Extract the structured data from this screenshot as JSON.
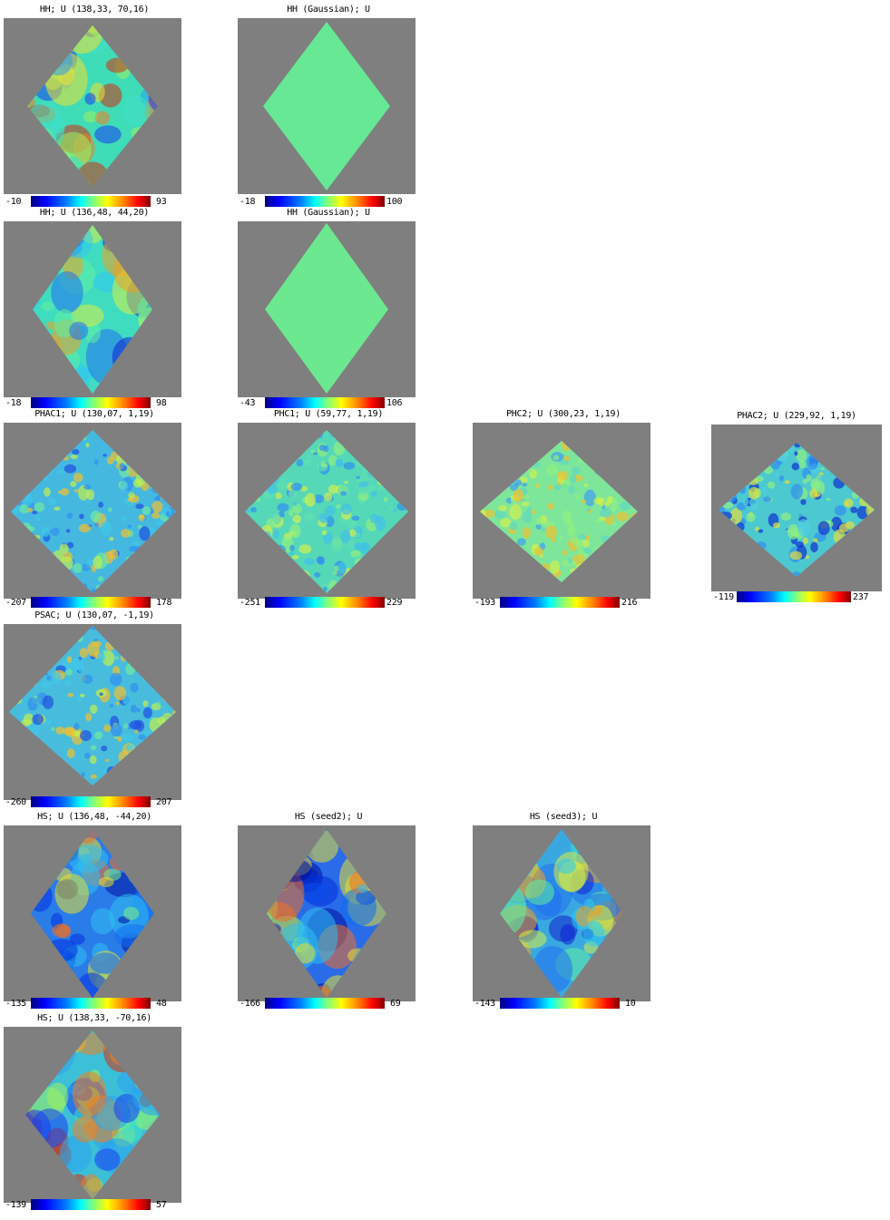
{
  "panels": [
    {
      "id": "p1",
      "title": "HH; U (138,33, 70,16)",
      "min": "-10",
      "max": "93",
      "map": "structured-warm"
    },
    {
      "id": "p2",
      "title": "HH (Gaussian); U",
      "min": "-18",
      "max": "100",
      "map": "uniform"
    },
    {
      "id": "p3",
      "title": "HH; U (136,48, 44,20)",
      "min": "-18",
      "max": "98",
      "map": "structured-mid"
    },
    {
      "id": "p4",
      "title": "HH (Gaussian); U",
      "min": "-43",
      "max": "106",
      "map": "uniform"
    },
    {
      "id": "p5",
      "title": "PHAC1; U (130,07, 1,19)",
      "min": "-207",
      "max": "178",
      "map": "noise-blue"
    },
    {
      "id": "p6",
      "title": "PHC1; U (59,77, 1,19)",
      "min": "-251",
      "max": "229",
      "map": "noise-green"
    },
    {
      "id": "p7",
      "title": "PHC2; U (300,23, 1,19)",
      "min": "-193",
      "max": "216",
      "map": "noise-yellow"
    },
    {
      "id": "p8",
      "title": "PHAC2; U (229,92, 1,19)",
      "min": "-119",
      "max": "237",
      "map": "noise-mid"
    },
    {
      "id": "p9",
      "title": "PSAC; U (130,07, -1,19)",
      "min": "-260",
      "max": "207",
      "map": "noise-blue"
    },
    {
      "id": "p10",
      "title": "HS; U (136,48, -44,20)",
      "min": "-135",
      "max": "48",
      "map": "structured-cold"
    },
    {
      "id": "p11",
      "title": "HS (seed2); U",
      "min": "-166",
      "max": "69",
      "map": "structured-cold"
    },
    {
      "id": "p12",
      "title": "HS (seed3); U",
      "min": "-143",
      "max": "10",
      "map": "structured-mid"
    },
    {
      "id": "p13",
      "title": "HS; U (138,33, -70,16)",
      "min": "-139",
      "max": "57",
      "map": "structured-warm"
    }
  ],
  "colors": {
    "background": "#7f7f7f",
    "page": "#ffffff"
  }
}
